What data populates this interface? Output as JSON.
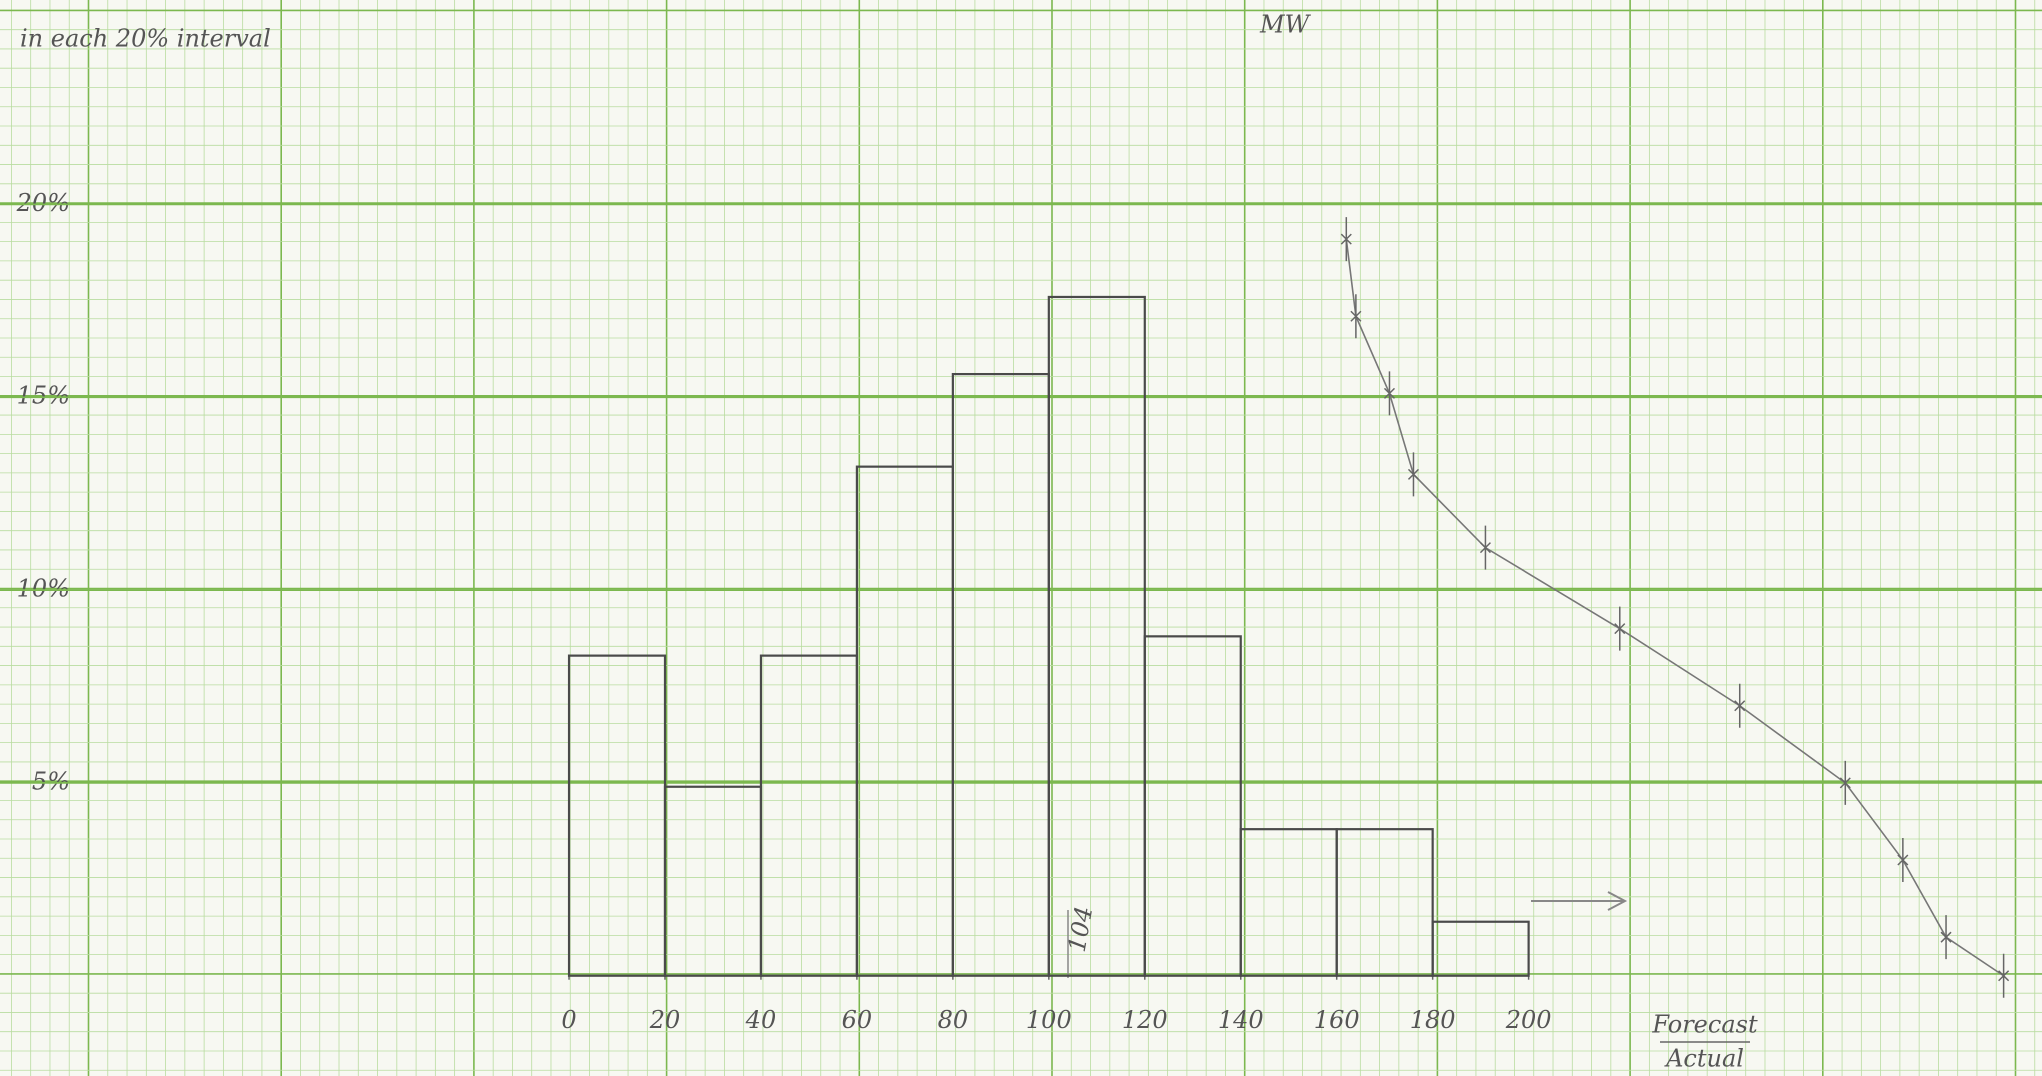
{
  "chart_data": {
    "type": "histogram",
    "annotation_top_left": "in each 20% interval",
    "annotation_top": "MW",
    "annotation_marker": "104",
    "x_label_numerator": "Forecast",
    "x_label_denominator": "Actual",
    "bins": [
      0,
      20,
      40,
      60,
      80,
      100,
      120,
      140,
      160,
      180,
      200
    ],
    "values": [
      8.3,
      4.9,
      8.3,
      13.2,
      15.6,
      17.6,
      8.8,
      3.8,
      3.8,
      1.4
    ],
    "color": "#4a4a4a",
    "overlay": {
      "x": [
        162,
        164,
        171,
        176,
        191,
        219,
        244,
        266,
        278,
        287,
        299
      ],
      "values": [
        19.1,
        17.1,
        15.1,
        13.0,
        11.1,
        9.0,
        7.0,
        5.0,
        3.0,
        1.0,
        0
      ],
      "color": "#777777"
    },
    "xlim": [
      -118.6,
      307
    ],
    "ylim": [
      -2.6,
      25.3
    ],
    "xticks": [
      0,
      20,
      40,
      60,
      80,
      100,
      120,
      140,
      160,
      180,
      200
    ],
    "yticks": [
      {
        "value": 5,
        "label": "5%"
      },
      {
        "value": 10,
        "label": "10%"
      },
      {
        "value": 15,
        "label": "15%"
      },
      {
        "value": 20,
        "label": "20%"
      }
    ],
    "grid": true
  }
}
